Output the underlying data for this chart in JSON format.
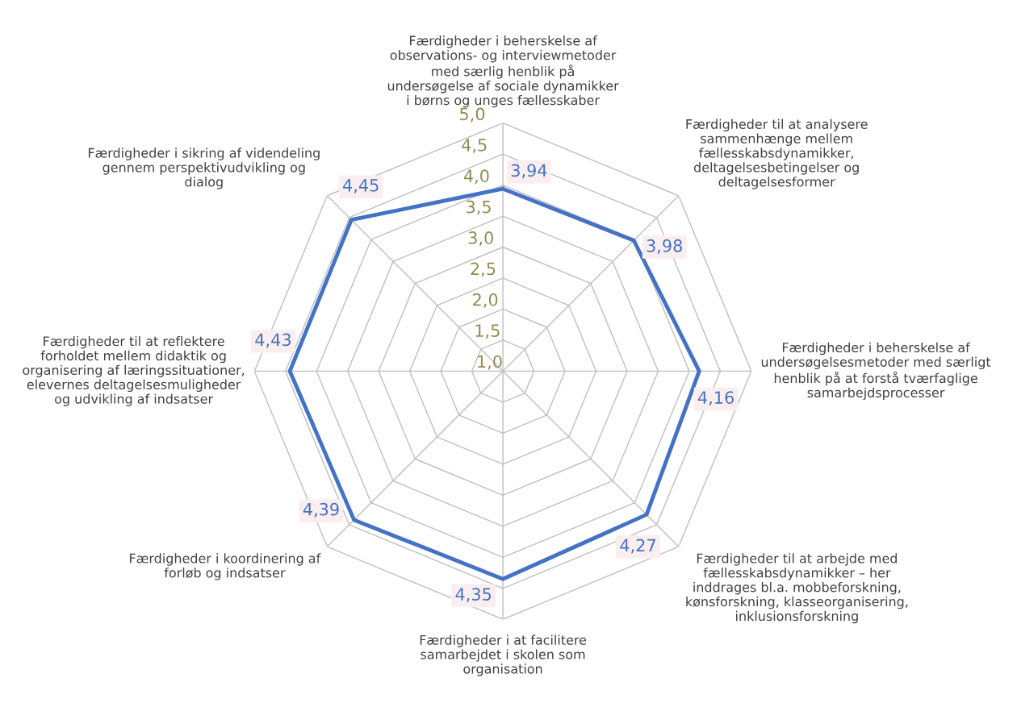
{
  "chart_data": {
    "type": "radar",
    "categories": [
      "Færdigheder i beherskelse af\nobservations- og interviewmetoder\nmed særlig henblik på\nundersøgelse af sociale dynamikker\ni børns og unges fællesskaber",
      "Færdigheder til at analysere\nsammenhænge mellem\nfællesskabsdynamikker,\ndeltagelsesbetingelser og\ndeltagelsesformer",
      "Færdigheder i beherskelse af\nundersøgelsesmetoder med særligt\nhenblik på at forstå tværfaglige\nsamarbejdsprocesser",
      "Færdigheder til at arbejde med\nfællesskabsdynamikker – her\ninddrages bl.a. mobbeforskning,\nkønsforskning, klasseorganisering,\ninklusionsforskning",
      "Færdigheder i at facilitere\nsamarbejdet i skolen som\norganisation",
      "Færdigheder i koordinering af\nforløb og indsatser",
      "Færdigheder til at reflektere\nforholdet mellem didaktik og\norganisering af læringssituationer,\nelevernes deltagelsesmuligheder\nog udvikling af indsatser",
      "Færdigheder i sikring af videndeling\ngennem perspektivudvikling og\ndialog"
    ],
    "series": [
      {
        "color": "#4472c4",
        "values": [
          3.94,
          3.98,
          4.16,
          4.27,
          4.35,
          4.39,
          4.43,
          4.45
        ],
        "value_labels": [
          "3,94",
          "3,98",
          "4,16",
          "4,27",
          "4,35",
          "4,39",
          "4,43",
          "4,45"
        ]
      }
    ],
    "ylim": [
      1,
      5
    ],
    "yticks": [
      {
        "value": 1,
        "label": "1,0"
      },
      {
        "value": 1.5,
        "label": "1,5"
      },
      {
        "value": 2,
        "label": "2,0"
      },
      {
        "value": 2.5,
        "label": "2,5"
      },
      {
        "value": 3,
        "label": "3,0"
      },
      {
        "value": 3.5,
        "label": "3,5"
      },
      {
        "value": 4,
        "label": "4,0"
      },
      {
        "value": 4.5,
        "label": "4,5"
      },
      {
        "value": 5,
        "label": "5,0"
      }
    ],
    "grid": true
  }
}
